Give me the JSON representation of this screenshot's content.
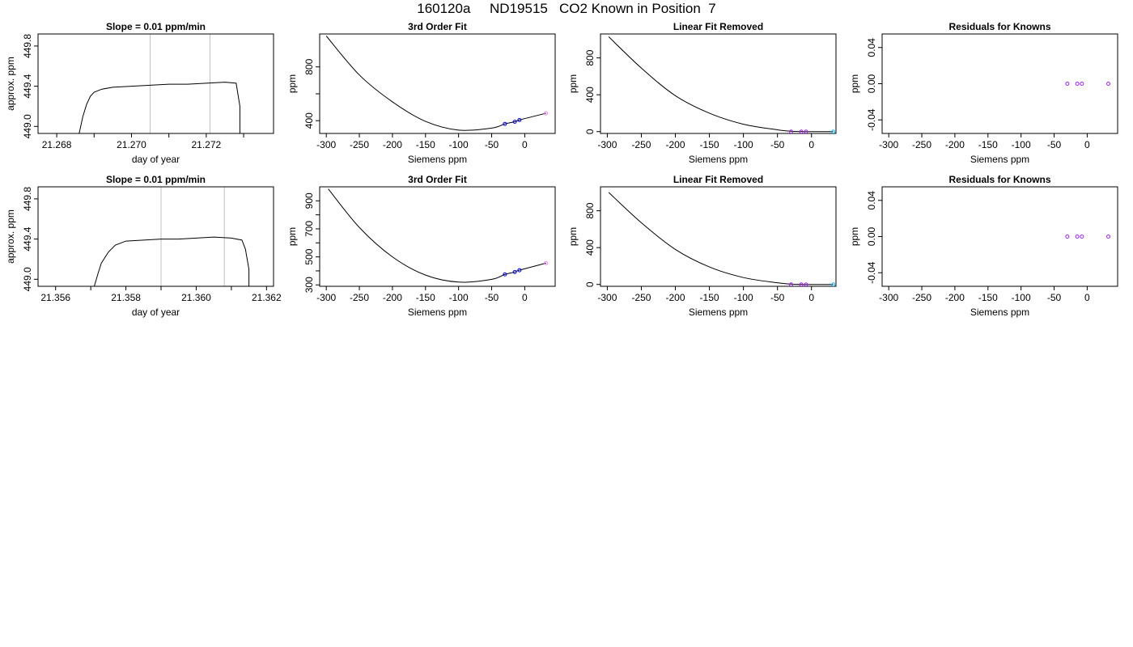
{
  "page_title": "160120a     ND19515   CO2 Known in Position  7",
  "colors": {
    "axis": "#000000",
    "vline": "#bebebe",
    "fit_curve": "#000000",
    "point_blue": "#0000ff",
    "point_purple": "#a020f0",
    "point_violet": "#ee82ee",
    "point_cyan": "#00bfff"
  },
  "chart_data": [
    {
      "type": "line",
      "panel": "row1-timeseries",
      "title": "Slope =  0.01  ppm/min",
      "xlabel": "day of year",
      "ylabel": "approx. ppm",
      "xlim": [
        21.2675,
        21.2738
      ],
      "ylim": [
        448.93,
        449.92
      ],
      "xticks": [
        21.268,
        21.27,
        21.272
      ],
      "xtick_labels": [
        "21.268",
        "21.270",
        "21.272"
      ],
      "minor_xticks": [
        21.269,
        21.271,
        21.273
      ],
      "yticks": [
        449.0,
        449.4,
        449.8
      ],
      "ytick_labels": [
        "449.0",
        "449.4",
        "449.8"
      ],
      "vlines": [
        21.2705,
        21.2721
      ],
      "series": [
        {
          "x": [
            21.2686,
            21.2687,
            21.2688,
            21.2689,
            21.269,
            21.2692,
            21.2695,
            21.27,
            21.2705,
            21.271,
            21.2715,
            21.272,
            21.2725,
            21.2728,
            21.2729,
            21.2729
          ],
          "y": [
            448.93,
            449.1,
            449.22,
            449.3,
            449.34,
            449.37,
            449.39,
            449.4,
            449.41,
            449.42,
            449.42,
            449.43,
            449.44,
            449.43,
            449.2,
            448.93
          ]
        }
      ]
    },
    {
      "type": "line",
      "panel": "row1-fit",
      "title": "3rd Order Fit",
      "xlabel": "Siemens ppm",
      "ylabel": "ppm",
      "xlim": [
        -310,
        46
      ],
      "ylim": [
        305,
        1045
      ],
      "xticks": [
        -300,
        -250,
        -200,
        -150,
        -100,
        -50,
        0
      ],
      "xtick_labels": [
        "-300",
        "-250",
        "-200",
        "-150",
        "-100",
        "-50",
        "0"
      ],
      "yticks": [
        400,
        600,
        800
      ],
      "ytick_labels": [
        "400",
        "",
        "800"
      ],
      "series": [
        {
          "name": "",
          "kind": "curve",
          "x": [
            -300,
            -250,
            -200,
            -150,
            -100,
            -50,
            -30,
            -15,
            -8,
            32
          ],
          "y": [
            1030,
            740,
            540,
            395,
            330,
            345,
            376,
            392,
            405,
            455
          ]
        },
        {
          "name": "",
          "kind": "points",
          "x": [
            -30,
            -15,
            -8
          ],
          "y": [
            376,
            392,
            405
          ],
          "color": "#0000ff"
        },
        {
          "name": "",
          "kind": "points",
          "x": [
            32
          ],
          "y": [
            455
          ],
          "color": "#ee82ee"
        }
      ]
    },
    {
      "type": "line",
      "panel": "row1-linear-removed",
      "title": "Linear Fit Removed",
      "xlabel": "Siemens ppm",
      "ylabel": "ppm",
      "xlim": [
        -310,
        36
      ],
      "ylim": [
        -20,
        1060
      ],
      "xticks": [
        -300,
        -250,
        -200,
        -150,
        -100,
        -50,
        0
      ],
      "xtick_labels": [
        "-300",
        "-250",
        "-200",
        "-150",
        "-100",
        "-50",
        "0"
      ],
      "yticks": [
        0,
        400,
        800
      ],
      "ytick_labels": [
        "0",
        "400",
        "800"
      ],
      "series": [
        {
          "name": "",
          "kind": "curve",
          "x": [
            -298,
            -250,
            -200,
            -150,
            -100,
            -50,
            -30,
            -15,
            -8,
            32
          ],
          "y": [
            1030,
            690,
            390,
            200,
            80,
            20,
            4,
            1,
            0,
            0
          ]
        },
        {
          "name": "",
          "kind": "points",
          "x": [
            -30,
            -15,
            -8
          ],
          "y": [
            0,
            0,
            0
          ],
          "color": "#a020f0"
        },
        {
          "name": "",
          "kind": "points",
          "x": [
            32
          ],
          "y": [
            0
          ],
          "color": "#00bfff"
        }
      ]
    },
    {
      "type": "scatter",
      "panel": "row1-residuals",
      "title": "Residuals for Knowns",
      "xlabel": "Siemens ppm",
      "ylabel": "ppm",
      "xlim": [
        -310,
        46
      ],
      "ylim": [
        -0.055,
        0.055
      ],
      "xticks": [
        -300,
        -250,
        -200,
        -150,
        -100,
        -50,
        0
      ],
      "xtick_labels": [
        "-300",
        "-250",
        "-200",
        "-150",
        "-100",
        "-50",
        "0"
      ],
      "yticks": [
        -0.04,
        0.0,
        0.04
      ],
      "ytick_labels": [
        "-0.04",
        "0.00",
        "0.04"
      ],
      "series": [
        {
          "name": "",
          "kind": "points",
          "x": [
            -30,
            -15,
            -8,
            32
          ],
          "y": [
            0,
            0,
            0,
            0
          ],
          "color": "#a020f0"
        }
      ]
    },
    {
      "type": "line",
      "panel": "row2-timeseries",
      "title": "Slope =  0.01  ppm/min",
      "xlabel": "day of year",
      "ylabel": "approx. ppm",
      "xlim": [
        21.3555,
        21.3622
      ],
      "ylim": [
        448.93,
        449.92
      ],
      "xticks": [
        21.356,
        21.358,
        21.36,
        21.362
      ],
      "xtick_labels": [
        "21.356",
        "21.358",
        "21.360",
        "21.362"
      ],
      "minor_xticks": [
        21.357,
        21.359,
        21.361
      ],
      "yticks": [
        449.0,
        449.4,
        449.8
      ],
      "ytick_labels": [
        "449.0",
        "449.4",
        "449.8"
      ],
      "vlines": [
        21.359,
        21.3608
      ],
      "series": [
        {
          "x": [
            21.3571,
            21.3572,
            21.3573,
            21.3575,
            21.3577,
            21.358,
            21.3585,
            21.359,
            21.3595,
            21.36,
            21.3605,
            21.361,
            21.3613,
            21.3614,
            21.3615,
            21.3615
          ],
          "y": [
            448.93,
            449.05,
            449.16,
            449.27,
            449.34,
            449.38,
            449.39,
            449.4,
            449.4,
            449.41,
            449.42,
            449.41,
            449.39,
            449.3,
            449.1,
            448.93
          ]
        }
      ]
    },
    {
      "type": "line",
      "panel": "row2-fit",
      "title": "3rd Order Fit",
      "xlabel": "Siemens ppm",
      "ylabel": "ppm",
      "xlim": [
        -310,
        46
      ],
      "ylim": [
        290,
        1000
      ],
      "xticks": [
        -300,
        -250,
        -200,
        -150,
        -100,
        -50,
        0
      ],
      "xtick_labels": [
        "-300",
        "-250",
        "-200",
        "-150",
        "-100",
        "-50",
        "0"
      ],
      "yticks": [
        300,
        400,
        500,
        600,
        700,
        800,
        900
      ],
      "ytick_labels": [
        "300",
        "",
        "500",
        "",
        "700",
        "",
        "900"
      ],
      "series": [
        {
          "name": "",
          "kind": "curve",
          "x": [
            -297,
            -250,
            -200,
            -150,
            -100,
            -50,
            -30,
            -15,
            -8,
            32
          ],
          "y": [
            985,
            710,
            500,
            370,
            320,
            340,
            375,
            392,
            405,
            455
          ]
        },
        {
          "name": "",
          "kind": "points",
          "x": [
            -30,
            -15,
            -8
          ],
          "y": [
            375,
            392,
            405
          ],
          "color": "#0000ff"
        },
        {
          "name": "",
          "kind": "points",
          "x": [
            32
          ],
          "y": [
            455
          ],
          "color": "#ee82ee"
        }
      ]
    },
    {
      "type": "line",
      "panel": "row2-linear-removed",
      "title": "Linear Fit Removed",
      "xlabel": "Siemens ppm",
      "ylabel": "ppm",
      "xlim": [
        -310,
        36
      ],
      "ylim": [
        -20,
        1060
      ],
      "xticks": [
        -300,
        -250,
        -200,
        -150,
        -100,
        -50,
        0
      ],
      "xtick_labels": [
        "-300",
        "-250",
        "-200",
        "-150",
        "-100",
        "-50",
        "0"
      ],
      "yticks": [
        0,
        400,
        800
      ],
      "ytick_labels": [
        "0",
        "400",
        "800"
      ],
      "series": [
        {
          "name": "",
          "kind": "curve",
          "x": [
            -298,
            -250,
            -200,
            -150,
            -100,
            -50,
            -30,
            -15,
            -8,
            32
          ],
          "y": [
            1000,
            670,
            380,
            190,
            75,
            18,
            4,
            1,
            0,
            0
          ]
        },
        {
          "name": "",
          "kind": "points",
          "x": [
            -30,
            -15,
            -8
          ],
          "y": [
            0,
            0,
            0
          ],
          "color": "#a020f0"
        },
        {
          "name": "",
          "kind": "points",
          "x": [
            32
          ],
          "y": [
            0
          ],
          "color": "#00bfff"
        }
      ]
    },
    {
      "type": "scatter",
      "panel": "row2-residuals",
      "title": "Residuals for Knowns",
      "xlabel": "Siemens ppm",
      "ylabel": "ppm",
      "xlim": [
        -310,
        46
      ],
      "ylim": [
        -0.055,
        0.055
      ],
      "xticks": [
        -300,
        -250,
        -200,
        -150,
        -100,
        -50,
        0
      ],
      "xtick_labels": [
        "-300",
        "-250",
        "-200",
        "-150",
        "-100",
        "-50",
        "0"
      ],
      "yticks": [
        -0.04,
        0.0,
        0.04
      ],
      "ytick_labels": [
        "-0.04",
        "0.00",
        "0.04"
      ],
      "series": [
        {
          "name": "",
          "kind": "points",
          "x": [
            -30,
            -15,
            -8,
            32
          ],
          "y": [
            0,
            0,
            0,
            0
          ],
          "color": "#a020f0"
        }
      ]
    }
  ]
}
